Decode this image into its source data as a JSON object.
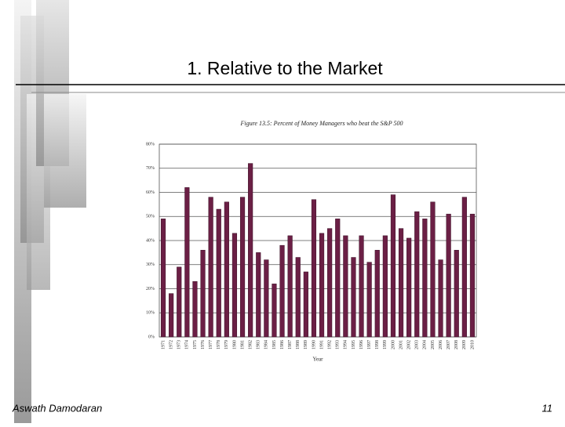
{
  "slide": {
    "title": "1. Relative to the Market",
    "author": "Aswath Damodaran",
    "page_number": "11"
  },
  "chart_data": {
    "type": "bar",
    "title": "Figure 13.5: Percent of Money Managers who beat the S&P 500",
    "x_label": "Year",
    "categories": [
      "1971",
      "1972",
      "1973",
      "1974",
      "1975",
      "1976",
      "1977",
      "1978",
      "1979",
      "1980",
      "1981",
      "1982",
      "1983",
      "1984",
      "1985",
      "1986",
      "1987",
      "1988",
      "1989",
      "1990",
      "1991",
      "1992",
      "1993",
      "1994",
      "1995",
      "1996",
      "1997",
      "1998",
      "1999",
      "2000",
      "2001",
      "2002",
      "2003",
      "2004",
      "2005",
      "2006",
      "2007",
      "2008",
      "2009",
      "2010"
    ],
    "values": [
      49,
      18,
      29,
      62,
      23,
      36,
      58,
      53,
      56,
      43,
      58,
      72,
      35,
      32,
      22,
      38,
      42,
      33,
      27,
      57,
      43,
      45,
      49,
      42,
      33,
      42,
      31,
      36,
      42,
      59,
      45,
      41,
      52,
      49,
      56,
      32,
      51,
      36,
      58,
      51
    ],
    "color": "#6b1f45",
    "ylim": [
      0,
      80
    ],
    "yticks": [
      {
        "value": 0,
        "label": "0%"
      },
      {
        "value": 10,
        "label": "10%"
      },
      {
        "value": 20,
        "label": "20%"
      },
      {
        "value": 30,
        "label": "30%"
      },
      {
        "value": 40,
        "label": "40%"
      },
      {
        "value": 50,
        "label": "50%"
      },
      {
        "value": 60,
        "label": "60%"
      },
      {
        "value": 70,
        "label": "70%"
      },
      {
        "value": 80,
        "label": "80%"
      }
    ],
    "grid": true
  }
}
